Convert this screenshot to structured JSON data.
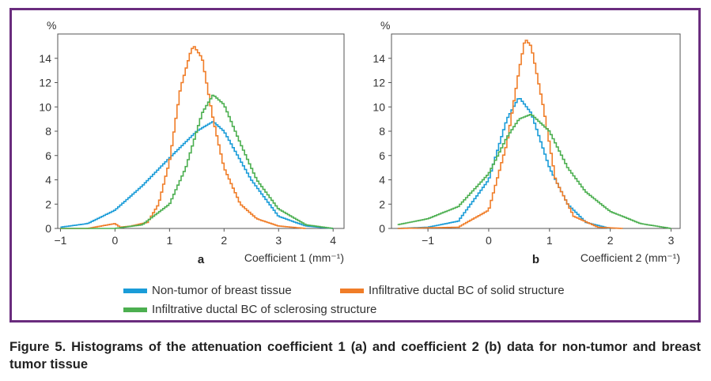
{
  "colors": {
    "frame": "#6a2c7e",
    "non_tumor": "#1a9cd8",
    "solid": "#f07d28",
    "sclerosing": "#4caf50"
  },
  "legend": [
    {
      "label": "Non-tumor of breast tissue",
      "color": "#1a9cd8"
    },
    {
      "label": "Infiltrative ductal BC of solid structure",
      "color": "#f07d28"
    },
    {
      "label": "Infiltrative ductal BC of sclerosing structure",
      "color": "#4caf50"
    }
  ],
  "caption": "Figure 5. Histograms of the attenuation coefficient 1 (a) and coefficient 2 (b) data for non-tumor and breast tumor tissue",
  "chart_data": [
    {
      "type": "line",
      "panel_label": "a",
      "ylabel": "%",
      "xlabel": "Coefficient 1 (mm⁻¹)",
      "xlim": [
        -1.05,
        4.2
      ],
      "ylim": [
        0,
        16
      ],
      "xticks": [
        -1,
        0,
        1,
        2,
        3,
        4
      ],
      "xtick_labels": [
        "−1",
        "0",
        "1",
        "2",
        "3",
        "4"
      ],
      "yticks": [
        0,
        2,
        4,
        6,
        8,
        10,
        12,
        14
      ],
      "series": [
        {
          "name": "Non-tumor of breast tissue",
          "color": "#1a9cd8",
          "x": [
            -1.0,
            -0.5,
            0.0,
            0.5,
            1.0,
            1.5,
            1.8,
            2.0,
            2.5,
            3.0,
            3.5,
            4.0
          ],
          "y": [
            0.1,
            0.4,
            1.5,
            3.5,
            5.8,
            8.0,
            8.8,
            8.0,
            4.0,
            1.0,
            0.2,
            0.0
          ]
        },
        {
          "name": "Infiltrative ductal BC of solid structure",
          "color": "#f07d28",
          "x": [
            -1.0,
            -0.5,
            0.0,
            0.1,
            0.3,
            0.6,
            0.8,
            1.0,
            1.2,
            1.4,
            1.45,
            1.6,
            1.8,
            2.0,
            2.3,
            2.6,
            3.0,
            3.5
          ],
          "y": [
            0.0,
            0.0,
            0.4,
            0.1,
            0.2,
            0.5,
            2.0,
            5.5,
            11.5,
            14.7,
            15.0,
            14.0,
            9.0,
            5.0,
            2.0,
            0.8,
            0.2,
            0.0
          ]
        },
        {
          "name": "Infiltrative ductal BC of sclerosing structure",
          "color": "#4caf50",
          "x": [
            -1.0,
            0.0,
            0.5,
            1.0,
            1.3,
            1.6,
            1.8,
            2.0,
            2.3,
            2.6,
            3.0,
            3.5,
            4.0
          ],
          "y": [
            0.0,
            0.0,
            0.3,
            2.0,
            5.0,
            9.5,
            11.0,
            10.2,
            7.0,
            4.0,
            1.6,
            0.3,
            0.0
          ]
        }
      ]
    },
    {
      "type": "line",
      "panel_label": "b",
      "ylabel": "%",
      "xlabel": "Coefficient 2 (mm⁻¹)",
      "xlim": [
        -1.6,
        3.15
      ],
      "ylim": [
        0,
        16
      ],
      "xticks": [
        -1,
        0,
        1,
        2,
        3
      ],
      "xtick_labels": [
        "−1",
        "0",
        "1",
        "2",
        "3"
      ],
      "yticks": [
        0,
        2,
        4,
        6,
        8,
        10,
        12,
        14
      ],
      "series": [
        {
          "name": "Non-tumor of breast tissue",
          "color": "#1a9cd8",
          "x": [
            -1.5,
            -1.0,
            -0.5,
            0.0,
            0.3,
            0.5,
            0.7,
            1.0,
            1.3,
            1.6,
            2.0
          ],
          "y": [
            0.0,
            0.1,
            0.6,
            4.0,
            9.0,
            10.8,
            9.5,
            5.0,
            2.0,
            0.5,
            0.0
          ]
        },
        {
          "name": "Infiltrative ductal BC of solid structure",
          "color": "#f07d28",
          "x": [
            -1.5,
            -0.5,
            0.0,
            0.3,
            0.5,
            0.6,
            0.7,
            0.9,
            1.1,
            1.4,
            1.8,
            2.2
          ],
          "y": [
            0.0,
            0.1,
            1.5,
            7.0,
            13.0,
            15.6,
            15.0,
            10.0,
            4.0,
            1.0,
            0.1,
            0.0
          ]
        },
        {
          "name": "Infiltrative ductal BC of sclerosing structure",
          "color": "#4caf50",
          "x": [
            -1.5,
            -1.0,
            -0.5,
            0.0,
            0.3,
            0.5,
            0.7,
            1.0,
            1.3,
            1.6,
            2.0,
            2.5,
            3.0
          ],
          "y": [
            0.3,
            0.8,
            1.8,
            4.5,
            7.5,
            9.0,
            9.4,
            8.0,
            5.0,
            3.0,
            1.4,
            0.4,
            0.0
          ]
        }
      ]
    }
  ]
}
